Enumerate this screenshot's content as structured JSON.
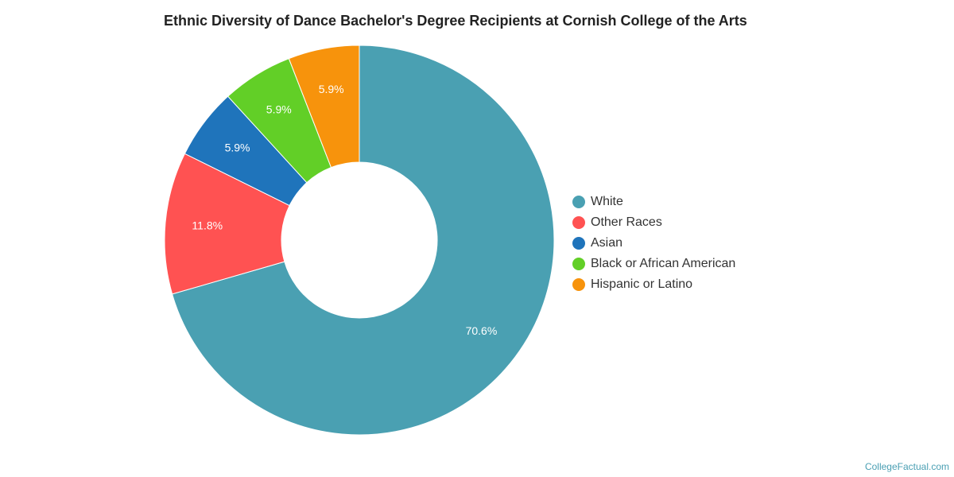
{
  "chart_data": {
    "type": "pie",
    "title": "Ethnic Diversity of Dance Bachelor's Degree Recipients at Cornish College of the Arts",
    "donut": true,
    "slices": [
      {
        "label": "White",
        "value": 70.6,
        "display": "70.6%",
        "color": "#4aa0b2"
      },
      {
        "label": "Other Races",
        "value": 11.8,
        "display": "11.8%",
        "color": "#ff5252"
      },
      {
        "label": "Asian",
        "value": 5.9,
        "display": "5.9%",
        "color": "#1f74bb"
      },
      {
        "label": "Black or African American",
        "value": 5.9,
        "display": "5.9%",
        "color": "#62cf27"
      },
      {
        "label": "Hispanic or Latino",
        "value": 5.9,
        "display": "5.9%",
        "color": "#f7930c"
      }
    ],
    "legend_position": "right"
  },
  "credit": "CollegeFactual.com"
}
